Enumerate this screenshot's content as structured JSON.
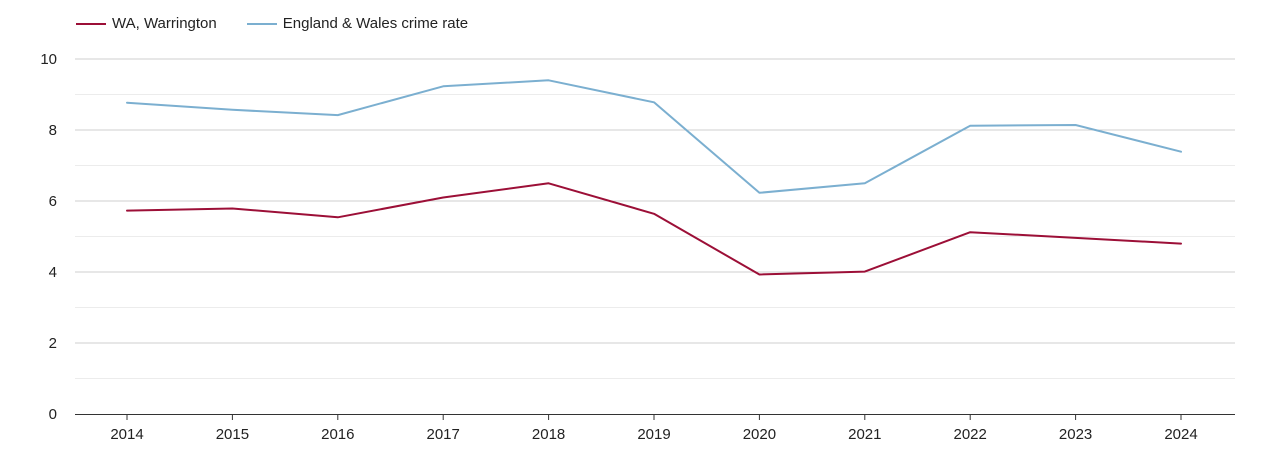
{
  "chart_data": {
    "type": "line",
    "title": "",
    "xlabel": "",
    "ylabel": "",
    "categories": [
      "2014",
      "2015",
      "2016",
      "2017",
      "2018",
      "2019",
      "2020",
      "2021",
      "2022",
      "2023",
      "2024"
    ],
    "ylim": [
      0,
      10
    ],
    "yticks": [
      0,
      2,
      4,
      6,
      8,
      10
    ],
    "grid": true,
    "legend_position": "top-left",
    "series": [
      {
        "name": "WA, Warrington",
        "color": "#9c0f37",
        "values": [
          5.73,
          5.79,
          5.54,
          6.1,
          6.5,
          5.64,
          3.93,
          4.01,
          5.12,
          4.96,
          4.8
        ]
      },
      {
        "name": "England & Wales crime rate",
        "color": "#7bafd0",
        "values": [
          8.77,
          8.57,
          8.42,
          9.23,
          9.4,
          8.78,
          6.23,
          6.5,
          8.12,
          8.14,
          7.39
        ]
      }
    ]
  }
}
